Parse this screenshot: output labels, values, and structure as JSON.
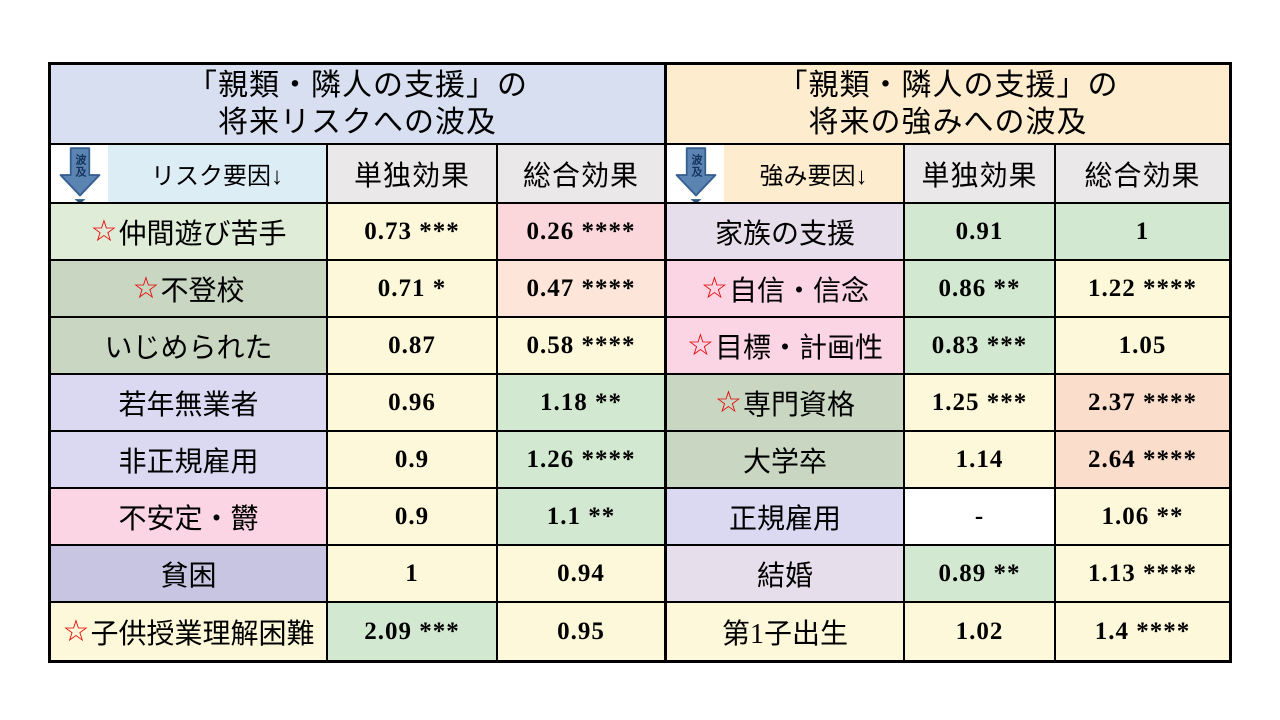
{
  "colors": {
    "border": "#000000",
    "star_red": "#e60000",
    "arrow_blue": "#5b84b3",
    "arrow_outline": "#36608f",
    "header_gray": "#eae8e9",
    "cell_bg": {
      "yellow": "#fdf8d9",
      "green": "#d3e8d1",
      "pink": "#fbd6da",
      "peachlight": "#fde5da",
      "peach": "#fbddcb",
      "palegreen": "#dfecd8",
      "sage": "#c8d6c2",
      "lavender": "#dbd9f2",
      "pinklabel": "#fbd5e3",
      "periwinkle": "#c7c5e1",
      "lilac": "#e7deeb",
      "white": "#ffffff",
      "titleblue": "#d8dff0",
      "cream": "#fdeccd",
      "headerblue": "#ddedf6"
    }
  },
  "panels": [
    {
      "title_line1": "「親類・隣人の支援」の",
      "title_line2": "将来リスクへの波及",
      "title_bg": "titleblue",
      "arrow_label": "波及",
      "factor_header": "リスク要因↓",
      "factor_header_bg": "headerblue",
      "col2_header": "単独効果",
      "col3_header": "総合効果",
      "rows": [
        {
          "star": "☆",
          "label": "仲間遊び苦手",
          "label_bg": "palegreen",
          "single": "0.73 ***",
          "single_bg": "yellow",
          "total": "0.26 ****",
          "total_bg": "pink"
        },
        {
          "star": "☆",
          "label": "不登校",
          "label_bg": "sage",
          "single": "0.71 *",
          "single_bg": "yellow",
          "total": "0.47 ****",
          "total_bg": "peachlight"
        },
        {
          "star": "",
          "label": "いじめられた",
          "label_bg": "sage",
          "single": "0.87",
          "single_bg": "yellow",
          "total": "0.58 ****",
          "total_bg": "yellow"
        },
        {
          "star": "",
          "label": "若年無業者",
          "label_bg": "lavender",
          "single": "0.96",
          "single_bg": "yellow",
          "total": "1.18 **",
          "total_bg": "green"
        },
        {
          "star": "",
          "label": "非正規雇用",
          "label_bg": "lavender",
          "single": "0.9",
          "single_bg": "yellow",
          "total": "1.26 ****",
          "total_bg": "green"
        },
        {
          "star": "",
          "label": "不安定・欝",
          "label_bg": "pinklabel",
          "single": "0.9",
          "single_bg": "yellow",
          "total": "1.1 **",
          "total_bg": "green"
        },
        {
          "star": "",
          "label": "貧困",
          "label_bg": "periwinkle",
          "single": "1",
          "single_bg": "yellow",
          "total": "0.94",
          "total_bg": "yellow"
        },
        {
          "star": "☆",
          "label": "子供授業理解困難",
          "label_bg": "yellow",
          "single": "2.09 ***",
          "single_bg": "green",
          "total": "0.95",
          "total_bg": "yellow"
        }
      ]
    },
    {
      "title_line1": "「親類・隣人の支援」の",
      "title_line2": "将来の強みへの波及",
      "title_bg": "cream",
      "arrow_label": "波及",
      "factor_header": "強み要因↓",
      "factor_header_bg": "cream",
      "col2_header": "単独効果",
      "col3_header": "総合効果",
      "rows": [
        {
          "star": "",
          "label": "家族の支援",
          "label_bg": "lilac",
          "single": "0.91",
          "single_bg": "green",
          "total": "1",
          "total_bg": "green"
        },
        {
          "star": "☆",
          "label": "自信・信念",
          "label_bg": "pinklabel",
          "single": "0.86 **",
          "single_bg": "green",
          "total": "1.22 ****",
          "total_bg": "yellow"
        },
        {
          "star": "☆",
          "label": "目標・計画性",
          "label_bg": "pinklabel",
          "single": "0.83 ***",
          "single_bg": "green",
          "total": "1.05",
          "total_bg": "yellow"
        },
        {
          "star": "☆",
          "label": "専門資格",
          "label_bg": "sage",
          "single": "1.25 ***",
          "single_bg": "yellow",
          "total": "2.37 ****",
          "total_bg": "peach"
        },
        {
          "star": "",
          "label": "大学卒",
          "label_bg": "sage",
          "single": "1.14",
          "single_bg": "yellow",
          "total": "2.64 ****",
          "total_bg": "peach"
        },
        {
          "star": "",
          "label": "正規雇用",
          "label_bg": "lavender",
          "single": "-",
          "single_bg": "white",
          "total": "1.06 **",
          "total_bg": "yellow"
        },
        {
          "star": "",
          "label": "結婚",
          "label_bg": "lilac",
          "single": "0.89 **",
          "single_bg": "green",
          "total": "1.13 ****",
          "total_bg": "yellow"
        },
        {
          "star": "",
          "label": "第1子出生",
          "label_bg": "yellow",
          "single": "1.02",
          "single_bg": "yellow",
          "total": "1.4 ****",
          "total_bg": "yellow"
        }
      ]
    }
  ],
  "chart_data": [
    {
      "type": "table",
      "title": "「親類・隣人の支援」の将来リスクへの波及",
      "columns": [
        "リスク要因↓",
        "単独効果",
        "総合効果"
      ],
      "rows": [
        [
          "☆仲間遊び苦手",
          "0.73 ***",
          "0.26 ****"
        ],
        [
          "☆不登校",
          "0.71 *",
          "0.47 ****"
        ],
        [
          "いじめられた",
          "0.87",
          "0.58 ****"
        ],
        [
          "若年無業者",
          "0.96",
          "1.18 **"
        ],
        [
          "非正規雇用",
          "0.9",
          "1.26 ****"
        ],
        [
          "不安定・欝",
          "0.9",
          "1.1 **"
        ],
        [
          "貧困",
          "1",
          "0.94"
        ],
        [
          "☆子供授業理解困難",
          "2.09 ***",
          "0.95"
        ]
      ]
    },
    {
      "type": "table",
      "title": "「親類・隣人の支援」の将来の強みへの波及",
      "columns": [
        "強み要因↓",
        "単独効果",
        "総合効果"
      ],
      "rows": [
        [
          "家族の支援",
          "0.91",
          "1"
        ],
        [
          "☆自信・信念",
          "0.86 **",
          "1.22 ****"
        ],
        [
          "☆目標・計画性",
          "0.83 ***",
          "1.05"
        ],
        [
          "☆専門資格",
          "1.25 ***",
          "2.37 ****"
        ],
        [
          "大学卒",
          "1.14",
          "2.64 ****"
        ],
        [
          "正規雇用",
          "-",
          "1.06 **"
        ],
        [
          "結婚",
          "0.89 **",
          "1.13 ****"
        ],
        [
          "第1子出生",
          "1.02",
          "1.4 ****"
        ]
      ]
    }
  ]
}
